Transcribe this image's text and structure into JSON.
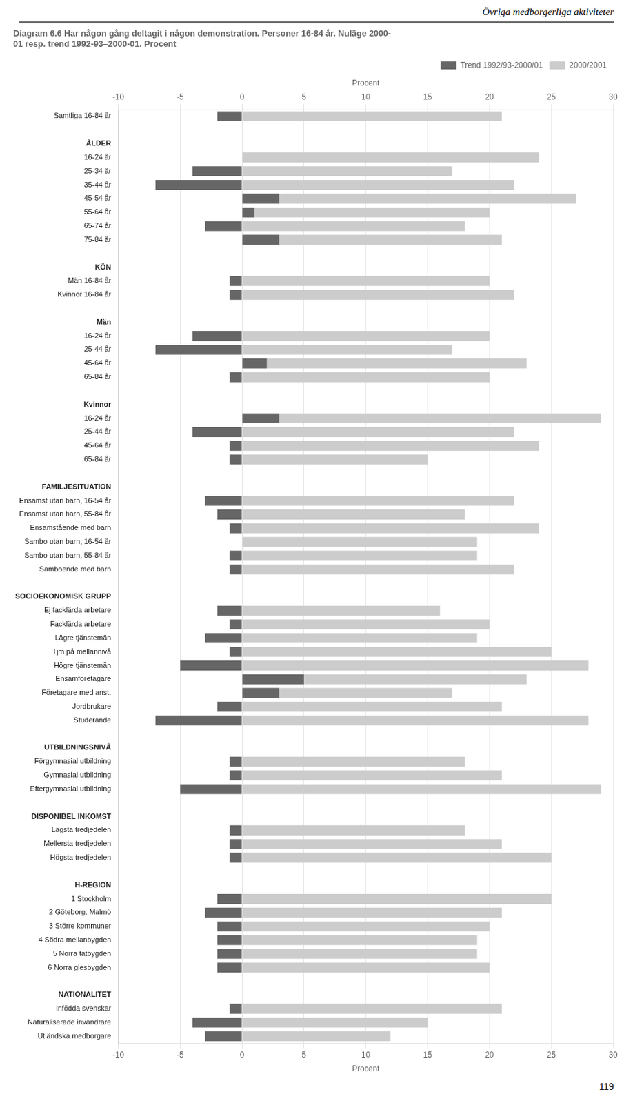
{
  "chart_data": {
    "type": "bar",
    "orientation": "horizontal",
    "title": [
      "Diagram 6.6 Har någon gång deltagit i någon demonstration. Personer 16-84 år. Nuläge 2000-",
      "01 resp. trend 1992-93–2000-01. Procent"
    ],
    "annotations": [
      "Övriga medborgerliga aktiviteter",
      "119"
    ],
    "xlabel": "Procent",
    "categories": [
      "Samtliga 16-84 år",
      null,
      "ÅLDER",
      "16-24 år",
      "25-34 år",
      "35-44 år",
      "45-54 år",
      "55-64 år",
      "65-74 år",
      "75-84 år",
      null,
      "KÖN",
      "Män 16-84 år",
      "Kvinnor 16-84 år",
      null,
      "Män",
      "16-24 år",
      "25-44 år",
      "45-64 år",
      "65-84 år",
      null,
      "Kvinnor",
      "16-24 år",
      "25-44 år",
      "45-64 år",
      "65-84 år",
      null,
      "FAMILJESITUATION",
      "Ensamst utan barn, 16-54 år",
      "Ensamst utan barn, 55-84 år",
      "Ensamstående med barn",
      "Sambo utan barn, 16-54 år",
      "Sambo utan barn, 55-84 år",
      "Samboende med barn",
      null,
      "SOCIOEKONOMISK GRUPP",
      "Ej facklärda arbetare",
      "Facklärda arbetare",
      "Lägre tjänstemän",
      "Tjm på mellannivå",
      "Högre tjänstemän",
      "Ensamföretagare",
      "Företagare med anst.",
      "Jordbrukare",
      "Studerande",
      null,
      "UTBILDNINGSNIVÅ",
      "Förgymnasial utbildning",
      "Gymnasial utbildning",
      "Eftergymnasial utbildning",
      null,
      "DISPONIBEL INKOMST",
      "Lägsta tredjedelen",
      "Mellersta tredjedelen",
      "Högsta tredjedelen",
      null,
      "H-REGION",
      "1 Stockholm",
      "2 Göteborg, Malmö",
      "3 Större kommuner",
      "4 Södra mellanbygden",
      "5 Norra tätbygden",
      "6 Norra glesbygden",
      null,
      "NATIONALITET",
      "Infödda svenskar",
      "Naturaliserade invandrare",
      "Utländska medborgare"
    ],
    "series": [
      {
        "name": "2000/2001",
        "color": "#cccccc",
        "values": [
          21,
          null,
          null,
          24,
          17,
          22,
          27,
          20,
          18,
          21,
          null,
          null,
          20,
          22,
          null,
          null,
          20,
          17,
          23,
          20,
          null,
          null,
          29,
          22,
          24,
          15,
          null,
          null,
          22,
          18,
          24,
          19,
          19,
          22,
          null,
          null,
          16,
          20,
          19,
          25,
          28,
          23,
          17,
          21,
          28,
          null,
          null,
          18,
          21,
          29,
          null,
          null,
          18,
          21,
          25,
          null,
          null,
          25,
          21,
          20,
          19,
          19,
          20,
          null,
          null,
          21,
          15,
          12
        ]
      },
      {
        "name": "Trend 1992/93-2000/01",
        "color": "#666666",
        "values": [
          -2,
          null,
          null,
          0,
          -4,
          -7,
          3,
          1,
          -3,
          3,
          null,
          null,
          -1,
          -1,
          null,
          null,
          -4,
          -7,
          2,
          -1,
          null,
          null,
          3,
          -4,
          -1,
          -1,
          null,
          null,
          -3,
          -2,
          -1,
          0,
          -1,
          -1,
          null,
          null,
          -2,
          -1,
          -3,
          -1,
          -5,
          5,
          3,
          -2,
          -7,
          null,
          null,
          -1,
          -1,
          -5,
          null,
          null,
          -1,
          -1,
          -1,
          null,
          null,
          -2,
          -3,
          -2,
          -2,
          -2,
          -2,
          null,
          null,
          -1,
          -4,
          -3
        ]
      }
    ],
    "xlim": [
      -10,
      30
    ],
    "xticks": [
      -10,
      -5,
      0,
      5,
      10,
      15,
      20,
      25,
      30
    ],
    "grid": true,
    "legend": "upper right"
  }
}
